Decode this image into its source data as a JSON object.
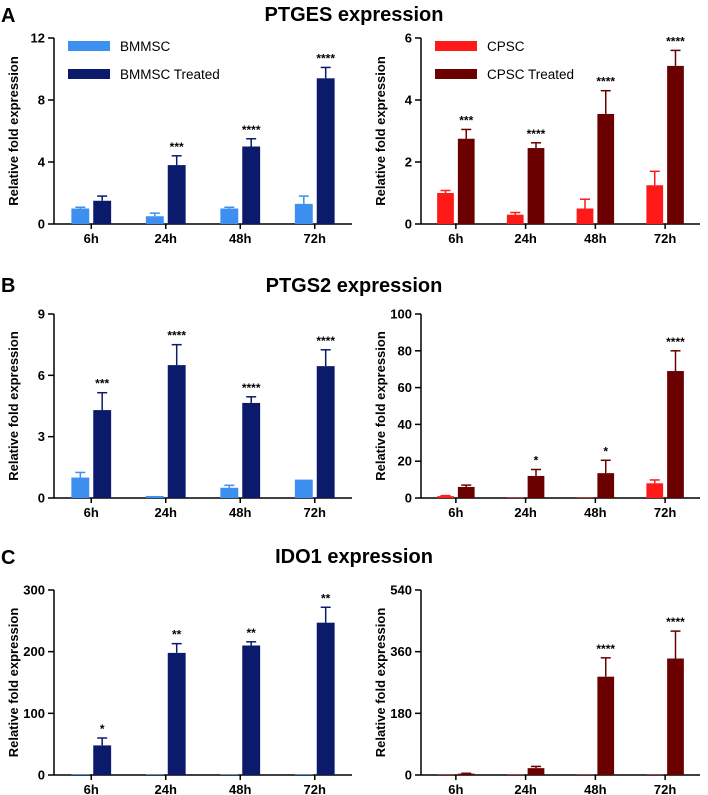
{
  "panel_letters": [
    "A",
    "B",
    "C"
  ],
  "section_titles": [
    "PTGES expression",
    "PTGS2 expression",
    "IDO1 expression"
  ],
  "colors": {
    "bmmsc": "#3d8ff0",
    "bmmsc_treated": "#0c1a6b",
    "cpsc": "#ff1a1a",
    "cpsc_treated": "#6a0000"
  },
  "chart_data": [
    {
      "type": "bar",
      "row": 0,
      "col": 0,
      "ylabel": "Relative fold expression",
      "categories": [
        "6h",
        "24h",
        "48h",
        "72h"
      ],
      "ylim": [
        0,
        12
      ],
      "yticks": [
        "0",
        "4",
        "8",
        "12"
      ],
      "legend": [
        "BMMSC",
        "BMMSC Treated"
      ],
      "legend_position": "top-left",
      "series": [
        {
          "name": "BMMSC",
          "color_key": "bmmsc",
          "values": [
            1.0,
            0.5,
            1.0,
            1.3
          ],
          "errors": [
            0.08,
            0.2,
            0.08,
            0.5
          ]
        },
        {
          "name": "BMMSC Treated",
          "color_key": "bmmsc_treated",
          "values": [
            1.5,
            3.8,
            5.0,
            9.4
          ],
          "errors": [
            0.3,
            0.6,
            0.5,
            0.7
          ]
        }
      ],
      "significance": [
        "",
        "***",
        "****",
        "****"
      ]
    },
    {
      "type": "bar",
      "row": 0,
      "col": 1,
      "ylabel": "Relative fold expression",
      "categories": [
        "6h",
        "24h",
        "48h",
        "72h"
      ],
      "ylim": [
        0,
        6
      ],
      "yticks": [
        "0",
        "2",
        "4",
        "6"
      ],
      "legend": [
        "CPSC",
        "CPSC Treated"
      ],
      "legend_position": "top-left",
      "series": [
        {
          "name": "CPSC",
          "color_key": "cpsc",
          "values": [
            1.0,
            0.3,
            0.5,
            1.25
          ],
          "errors": [
            0.08,
            0.07,
            0.3,
            0.45
          ]
        },
        {
          "name": "CPSC Treated",
          "color_key": "cpsc_treated",
          "values": [
            2.75,
            2.45,
            3.55,
            5.1
          ],
          "errors": [
            0.3,
            0.17,
            0.75,
            0.5
          ]
        }
      ],
      "significance": [
        "***",
        "****",
        "****",
        "****"
      ]
    },
    {
      "type": "bar",
      "row": 1,
      "col": 0,
      "ylabel": "Relative fold expression",
      "categories": [
        "6h",
        "24h",
        "48h",
        "72h"
      ],
      "ylim": [
        0,
        9
      ],
      "yticks": [
        "0",
        "3",
        "6",
        "9"
      ],
      "series": [
        {
          "name": "BMMSC",
          "color_key": "bmmsc",
          "values": [
            1.0,
            0.1,
            0.5,
            0.9
          ],
          "errors": [
            0.25,
            0.0,
            0.12,
            0.0
          ]
        },
        {
          "name": "BMMSC Treated",
          "color_key": "bmmsc_treated",
          "values": [
            4.3,
            6.5,
            4.65,
            6.45
          ],
          "errors": [
            0.85,
            1.0,
            0.3,
            0.8
          ]
        }
      ],
      "significance": [
        "***",
        "****",
        "****",
        "****"
      ]
    },
    {
      "type": "bar",
      "row": 1,
      "col": 1,
      "ylabel": "Relative fold expression",
      "categories": [
        "6h",
        "24h",
        "48h",
        "72h"
      ],
      "ylim": [
        0,
        100
      ],
      "yticks": [
        "0",
        "20",
        "40",
        "60",
        "80",
        "100"
      ],
      "series": [
        {
          "name": "CPSC",
          "color_key": "cpsc",
          "values": [
            1.0,
            0.2,
            0.2,
            8.0
          ],
          "errors": [
            0.3,
            0.0,
            0.0,
            1.8
          ]
        },
        {
          "name": "CPSC Treated",
          "color_key": "cpsc_treated",
          "values": [
            6.0,
            12.0,
            13.5,
            69.0
          ],
          "errors": [
            1.0,
            3.5,
            7.0,
            11.0
          ]
        }
      ],
      "significance": [
        "",
        "*",
        "*",
        "****"
      ]
    },
    {
      "type": "bar",
      "row": 2,
      "col": 0,
      "ylabel": "Relative fold expression",
      "categories": [
        "6h",
        "24h",
        "48h",
        "72h"
      ],
      "ylim": [
        0,
        300
      ],
      "yticks": [
        "0",
        "100",
        "200",
        "300"
      ],
      "series": [
        {
          "name": "BMMSC",
          "color_key": "bmmsc",
          "values": [
            1.0,
            1.0,
            1.0,
            1.0
          ],
          "errors": [
            0,
            0,
            0,
            0
          ]
        },
        {
          "name": "BMMSC Treated",
          "color_key": "bmmsc_treated",
          "values": [
            48,
            198,
            210,
            247
          ],
          "errors": [
            12,
            15,
            6,
            25
          ]
        }
      ],
      "significance": [
        "*",
        "**",
        "**",
        "**"
      ]
    },
    {
      "type": "bar",
      "row": 2,
      "col": 1,
      "ylabel": "Relative fold expression",
      "categories": [
        "6h",
        "24h",
        "48h",
        "72h"
      ],
      "ylim": [
        0,
        540
      ],
      "yticks": [
        "0",
        "180",
        "360",
        "540"
      ],
      "series": [
        {
          "name": "CPSC",
          "color_key": "cpsc",
          "values": [
            1.0,
            1.0,
            1.0,
            1.0
          ],
          "errors": [
            0,
            0,
            0,
            0
          ]
        },
        {
          "name": "CPSC Treated",
          "color_key": "cpsc_treated",
          "values": [
            4,
            20,
            287,
            340
          ],
          "errors": [
            1,
            5,
            55,
            80
          ]
        }
      ],
      "significance": [
        "",
        "",
        "****",
        "****"
      ]
    }
  ]
}
